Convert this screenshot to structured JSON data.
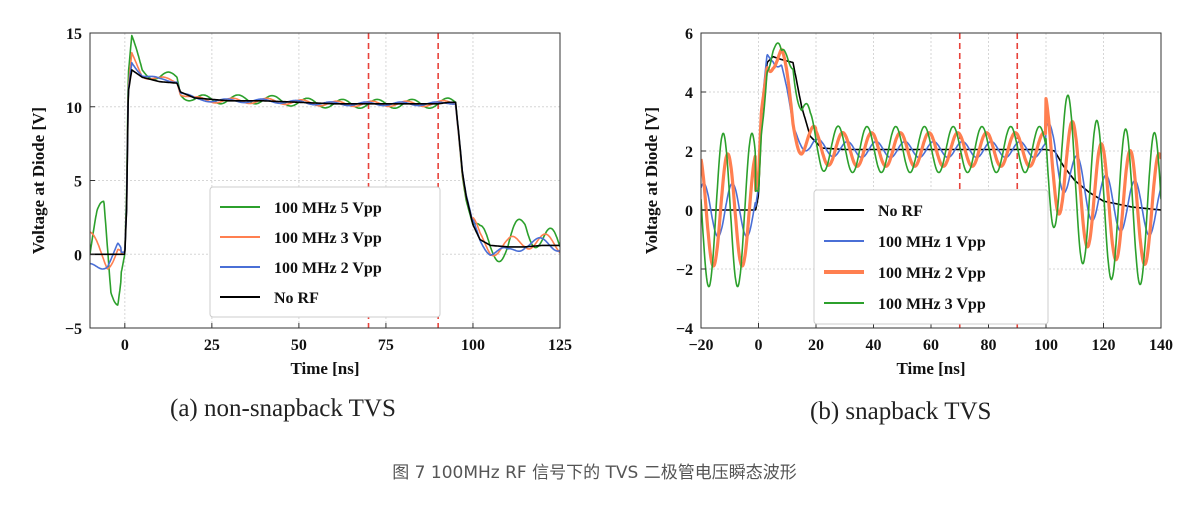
{
  "chart_data": [
    {
      "type": "line",
      "panel_caption": "(a)   non-snapback TVS",
      "xlabel": "Time [ns]",
      "ylabel": "Voltage at Diode [V]",
      "xlim": [
        -10,
        125
      ],
      "ylim": [
        -5,
        15
      ],
      "xticks": [
        0,
        25,
        50,
        75,
        100,
        125
      ],
      "yticks": [
        -5,
        0,
        5,
        10,
        15
      ],
      "grid": true,
      "legend_position": "center-left",
      "markers_x": [
        70,
        90
      ],
      "series": [
        {
          "name": "100 MHz 5 Vpp",
          "color": "#2ca02c",
          "rf_freq_mhz": 100,
          "rf_amp": 1.0,
          "x": [
            -10,
            -8,
            -6,
            -4,
            -2,
            -1,
            0,
            0.5,
            1,
            2,
            5,
            10,
            15,
            16,
            20,
            30,
            40,
            50,
            60,
            70,
            80,
            90,
            93,
            95,
            96,
            97,
            98,
            100,
            102,
            105,
            110,
            115,
            120,
            125
          ],
          "y": [
            0,
            2,
            3,
            -2,
            -2.5,
            -1,
            0,
            4,
            12,
            14.5,
            12.5,
            12,
            12,
            11,
            10.5,
            10.5,
            10.5,
            10.3,
            10.2,
            10.2,
            10.2,
            10.2,
            10.3,
            10.3,
            8,
            5.5,
            4,
            2,
            1,
            0.5,
            0.5,
            2,
            1,
            0.5
          ]
        },
        {
          "name": "100 MHz 3 Vpp",
          "color": "#ff7f50",
          "rf_freq_mhz": 100,
          "rf_amp": 0.6,
          "x": [
            -10,
            -5,
            -2,
            -1,
            0,
            0.5,
            1,
            2,
            5,
            10,
            15,
            16,
            20,
            30,
            40,
            50,
            60,
            70,
            80,
            90,
            93,
            95,
            96,
            97,
            98,
            100,
            102,
            105,
            110,
            115,
            120,
            125
          ],
          "y": [
            1,
            -0.5,
            0.5,
            0,
            0,
            3,
            11,
            13.5,
            12.2,
            11.8,
            11.8,
            11,
            10.5,
            10.4,
            10.4,
            10.3,
            10.2,
            10.2,
            10.2,
            10.2,
            10.3,
            10.3,
            8,
            5.5,
            4,
            2,
            1,
            0.5,
            0.5,
            1,
            0.8,
            0.6
          ]
        },
        {
          "name": "100 MHz 2 Vpp",
          "color": "#4a6fd6",
          "rf_freq_mhz": 100,
          "rf_amp": 0.4,
          "x": [
            -10,
            -5,
            -2,
            -1,
            0,
            0.5,
            1,
            2,
            5,
            10,
            15,
            16,
            20,
            30,
            40,
            50,
            60,
            70,
            80,
            90,
            93,
            95,
            96,
            97,
            98,
            100,
            102,
            105,
            110,
            115,
            120,
            125
          ],
          "y": [
            -1,
            -0.5,
            0.5,
            0,
            0,
            3,
            11,
            13,
            12.2,
            11.8,
            11.8,
            11,
            10.5,
            10.4,
            10.4,
            10.3,
            10.2,
            10.2,
            10.2,
            10.2,
            10.3,
            10.3,
            8,
            5.5,
            4,
            2,
            1,
            0.3,
            0,
            0.8,
            0.7,
            0.6
          ]
        },
        {
          "name": "No RF",
          "color": "#000000",
          "rf_freq_mhz": 0,
          "rf_amp": 0,
          "x": [
            -10,
            -2,
            -1,
            0,
            0.5,
            1,
            2,
            5,
            10,
            15,
            16,
            20,
            30,
            40,
            50,
            60,
            70,
            80,
            90,
            93,
            95,
            96,
            97,
            98,
            100,
            102,
            105,
            110,
            115,
            120,
            125
          ],
          "y": [
            0,
            0,
            0,
            0,
            3,
            11,
            12.5,
            12,
            11.7,
            11.6,
            11,
            10.6,
            10.4,
            10.4,
            10.3,
            10.2,
            10.2,
            10.2,
            10.2,
            10.3,
            10.3,
            8,
            5.5,
            4,
            2,
            1,
            0.6,
            0.5,
            0.5,
            0.6,
            0.6
          ]
        }
      ]
    },
    {
      "type": "line",
      "panel_caption": "(b)  snapback TVS",
      "xlabel": "Time [ns]",
      "ylabel": "Voltage at Diode [V]",
      "xlim": [
        -20,
        140
      ],
      "ylim": [
        -4,
        6
      ],
      "xticks": [
        -20,
        0,
        20,
        40,
        60,
        80,
        100,
        120,
        140
      ],
      "yticks": [
        -4,
        -2,
        0,
        2,
        4,
        6
      ],
      "grid": true,
      "legend_position": "bottom-left",
      "markers_x": [
        70,
        90
      ],
      "series": [
        {
          "name": "No RF",
          "color": "#000000",
          "rf_freq_mhz": 0,
          "rf_amp": 0,
          "x": [
            -20,
            -1,
            0,
            1,
            3,
            5,
            8,
            12,
            15,
            18,
            22,
            30,
            40,
            60,
            80,
            100,
            103,
            106,
            110,
            115,
            120,
            130,
            140
          ],
          "y": [
            0,
            0,
            0.5,
            3,
            5,
            5.2,
            5.1,
            5,
            3.5,
            2.5,
            2.1,
            2.05,
            2.05,
            2.05,
            2.05,
            2.05,
            2,
            1.5,
            1,
            0.6,
            0.3,
            0.1,
            0
          ]
        },
        {
          "name": "100 MHz 1 Vpp",
          "color": "#4a6fd6",
          "rf_freq_mhz": 100,
          "rf_amp": 0.9,
          "x": [
            -20,
            -1,
            0,
            1,
            3,
            5,
            8,
            12,
            15,
            18,
            22,
            30,
            40,
            60,
            80,
            100,
            103,
            106,
            110,
            115,
            120,
            130,
            140
          ],
          "y": [
            0,
            0,
            0.5,
            3,
            5.2,
            5.3,
            5,
            2.6,
            2.4,
            2.2,
            2.1,
            2.05,
            2.05,
            2.05,
            2.05,
            2.05,
            2,
            1.5,
            1,
            0.6,
            0.3,
            0.1,
            0
          ]
        },
        {
          "name": "100 MHz 2 Vpp",
          "color": "#ff7f50",
          "rf_freq_mhz": 100,
          "rf_amp": 1.9,
          "x": [
            -20,
            -1,
            0,
            1,
            3,
            5,
            8,
            12,
            15,
            18,
            22,
            30,
            40,
            60,
            80,
            100,
            103,
            106,
            110,
            115,
            120,
            130,
            140
          ],
          "y": [
            0,
            0,
            0.5,
            3,
            5.3,
            5.4,
            5,
            3,
            2.5,
            2.2,
            2.1,
            2.05,
            2.05,
            2.05,
            2.05,
            2.05,
            2,
            1.5,
            1,
            0.6,
            0.3,
            0.1,
            0
          ]
        },
        {
          "name": "100 MHz 3 Vpp",
          "color": "#2ca02c",
          "rf_freq_mhz": 100,
          "rf_amp": 2.6,
          "x": [
            -20,
            -1,
            0,
            1,
            3,
            5,
            8,
            12,
            15,
            18,
            22,
            30,
            40,
            60,
            80,
            100,
            103,
            106,
            110,
            115,
            120,
            130,
            140
          ],
          "y": [
            0,
            0,
            0.5,
            3,
            5.6,
            5.5,
            4.5,
            5.6,
            3.5,
            2.4,
            2.1,
            2.05,
            2.05,
            2.05,
            2.05,
            2.05,
            2,
            1.5,
            1,
            0.6,
            0.3,
            0.1,
            0
          ]
        }
      ]
    }
  ],
  "figure_caption": "图 7 100MHz RF 信号下的 TVS 二极管电压瞬态波形"
}
